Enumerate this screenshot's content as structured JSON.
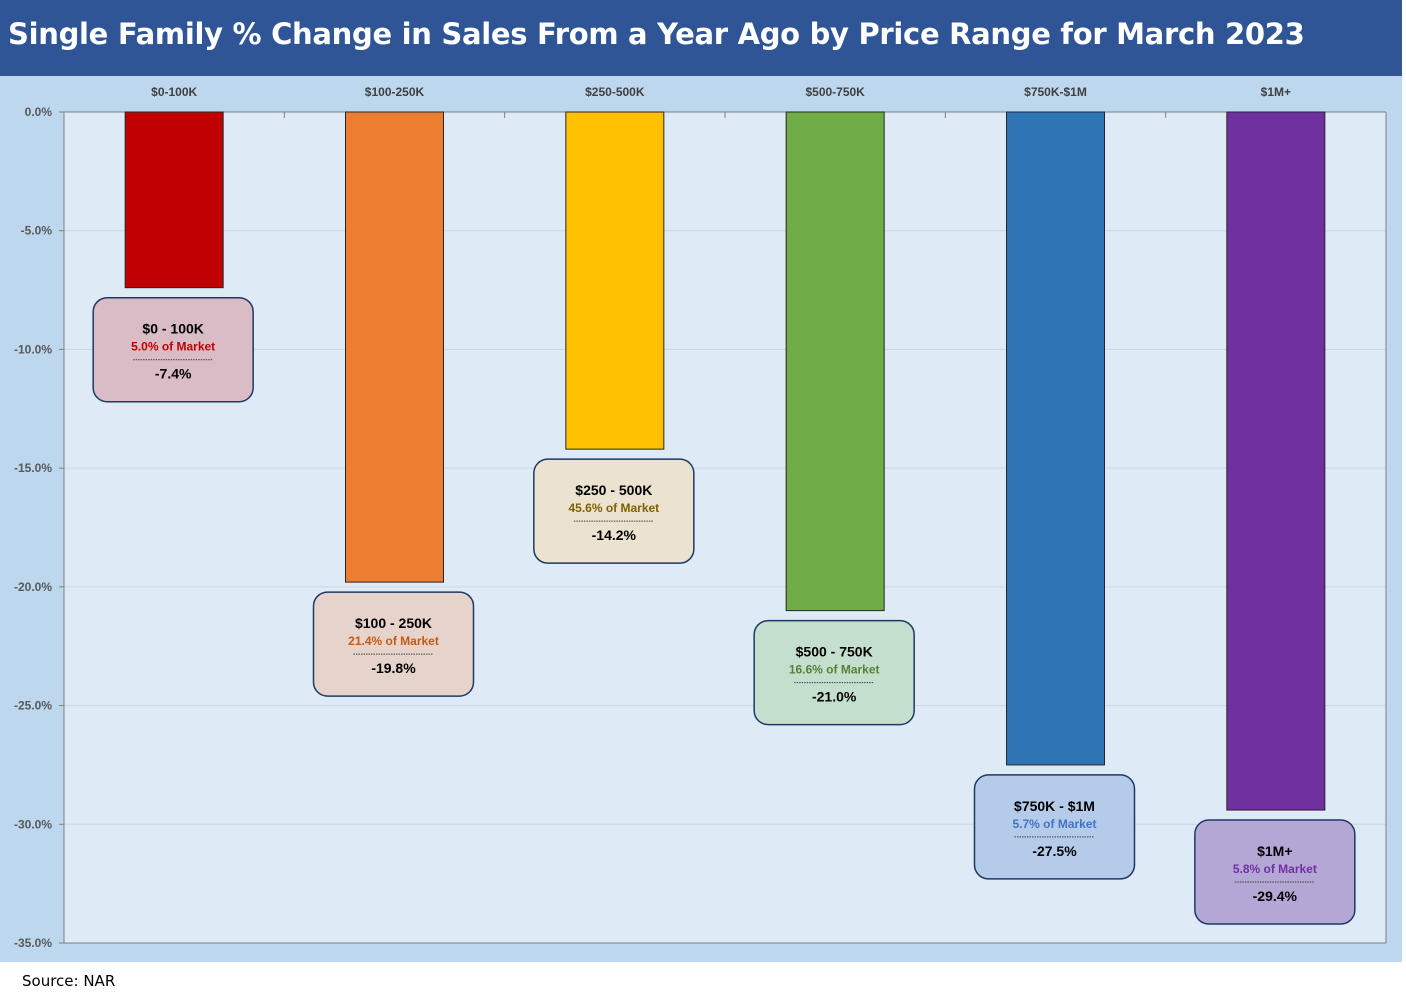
{
  "title": "Single Family % Change in Sales From a Year Ago by Price Range for March 2023",
  "source": "Source: NAR",
  "chart_data": {
    "type": "bar",
    "title": "Single Family % Change in Sales From a Year Ago by Price Range for March 2023",
    "categories": [
      "$0-100K",
      "$100-250K",
      "$250-500K",
      "$500-750K",
      "$750K-$1M",
      "$1M+"
    ],
    "values": [
      -7.4,
      -19.8,
      -14.2,
      -21.0,
      -27.5,
      -29.4
    ],
    "ylim": [
      -35,
      0
    ],
    "yticks": [
      "0.0%",
      "-5.0%",
      "-10.0%",
      "-15.0%",
      "-20.0%",
      "-25.0%",
      "-30.0%",
      "-35.0%"
    ],
    "ytick_values": [
      0,
      -5,
      -10,
      -15,
      -20,
      -25,
      -30,
      -35
    ],
    "xaxis_position": "top",
    "grid": true,
    "colors": [
      "#c00000",
      "#ed7d31",
      "#ffc000",
      "#70ad47",
      "#2e75b6",
      "#7030a0"
    ],
    "callouts": [
      {
        "title": "$0 - 100K",
        "share": "5.0% of Market",
        "value": "-7.4%",
        "fill": "#d9bcc6",
        "share_color": "#c00000"
      },
      {
        "title": "$100 - 250K",
        "share": "21.4% of Market",
        "value": "-19.8%",
        "fill": "#e6d3cb",
        "share_color": "#c55a11"
      },
      {
        "title": "$250 - 500K",
        "share": "45.6% of Market",
        "value": "-14.2%",
        "fill": "#ebe3cf",
        "share_color": "#7f6000"
      },
      {
        "title": "$500 - 750K",
        "share": "16.6% of Market",
        "value": "-21.0%",
        "fill": "#c5dfcf",
        "share_color": "#548235"
      },
      {
        "title": "$750K - $1M",
        "share": "5.7% of Market",
        "value": "-27.5%",
        "fill": "#b4cbe9",
        "share_color": "#4472c4"
      },
      {
        "title": "$1M+",
        "share": "5.8% of Market",
        "value": "-29.4%",
        "fill": "#b4a7d6",
        "share_color": "#7030a0"
      }
    ]
  }
}
